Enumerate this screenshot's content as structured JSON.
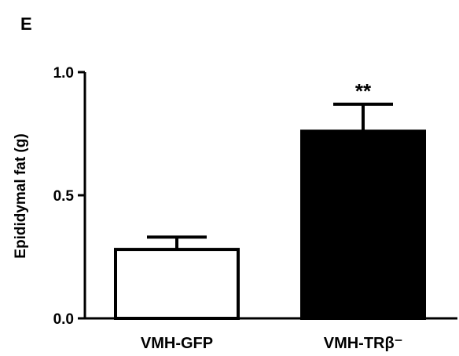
{
  "chart_data": {
    "type": "bar",
    "panel_label": "E",
    "categories": [
      "VMH-GFP",
      "VMH-TRβ⁻"
    ],
    "values": [
      0.28,
      0.76
    ],
    "errors": [
      0.05,
      0.11
    ],
    "bar_colors": [
      "#ffffff",
      "#000000"
    ],
    "significance": [
      "",
      "**"
    ],
    "ylabel": "Epididymal fat (g)",
    "xlabel": "",
    "ylim": [
      0,
      1.0
    ],
    "yticks": [
      0.0,
      0.5,
      1.0
    ],
    "ytick_labels": [
      "0.0",
      "0.5",
      "1.0"
    ],
    "grid": false,
    "legend": "none"
  }
}
